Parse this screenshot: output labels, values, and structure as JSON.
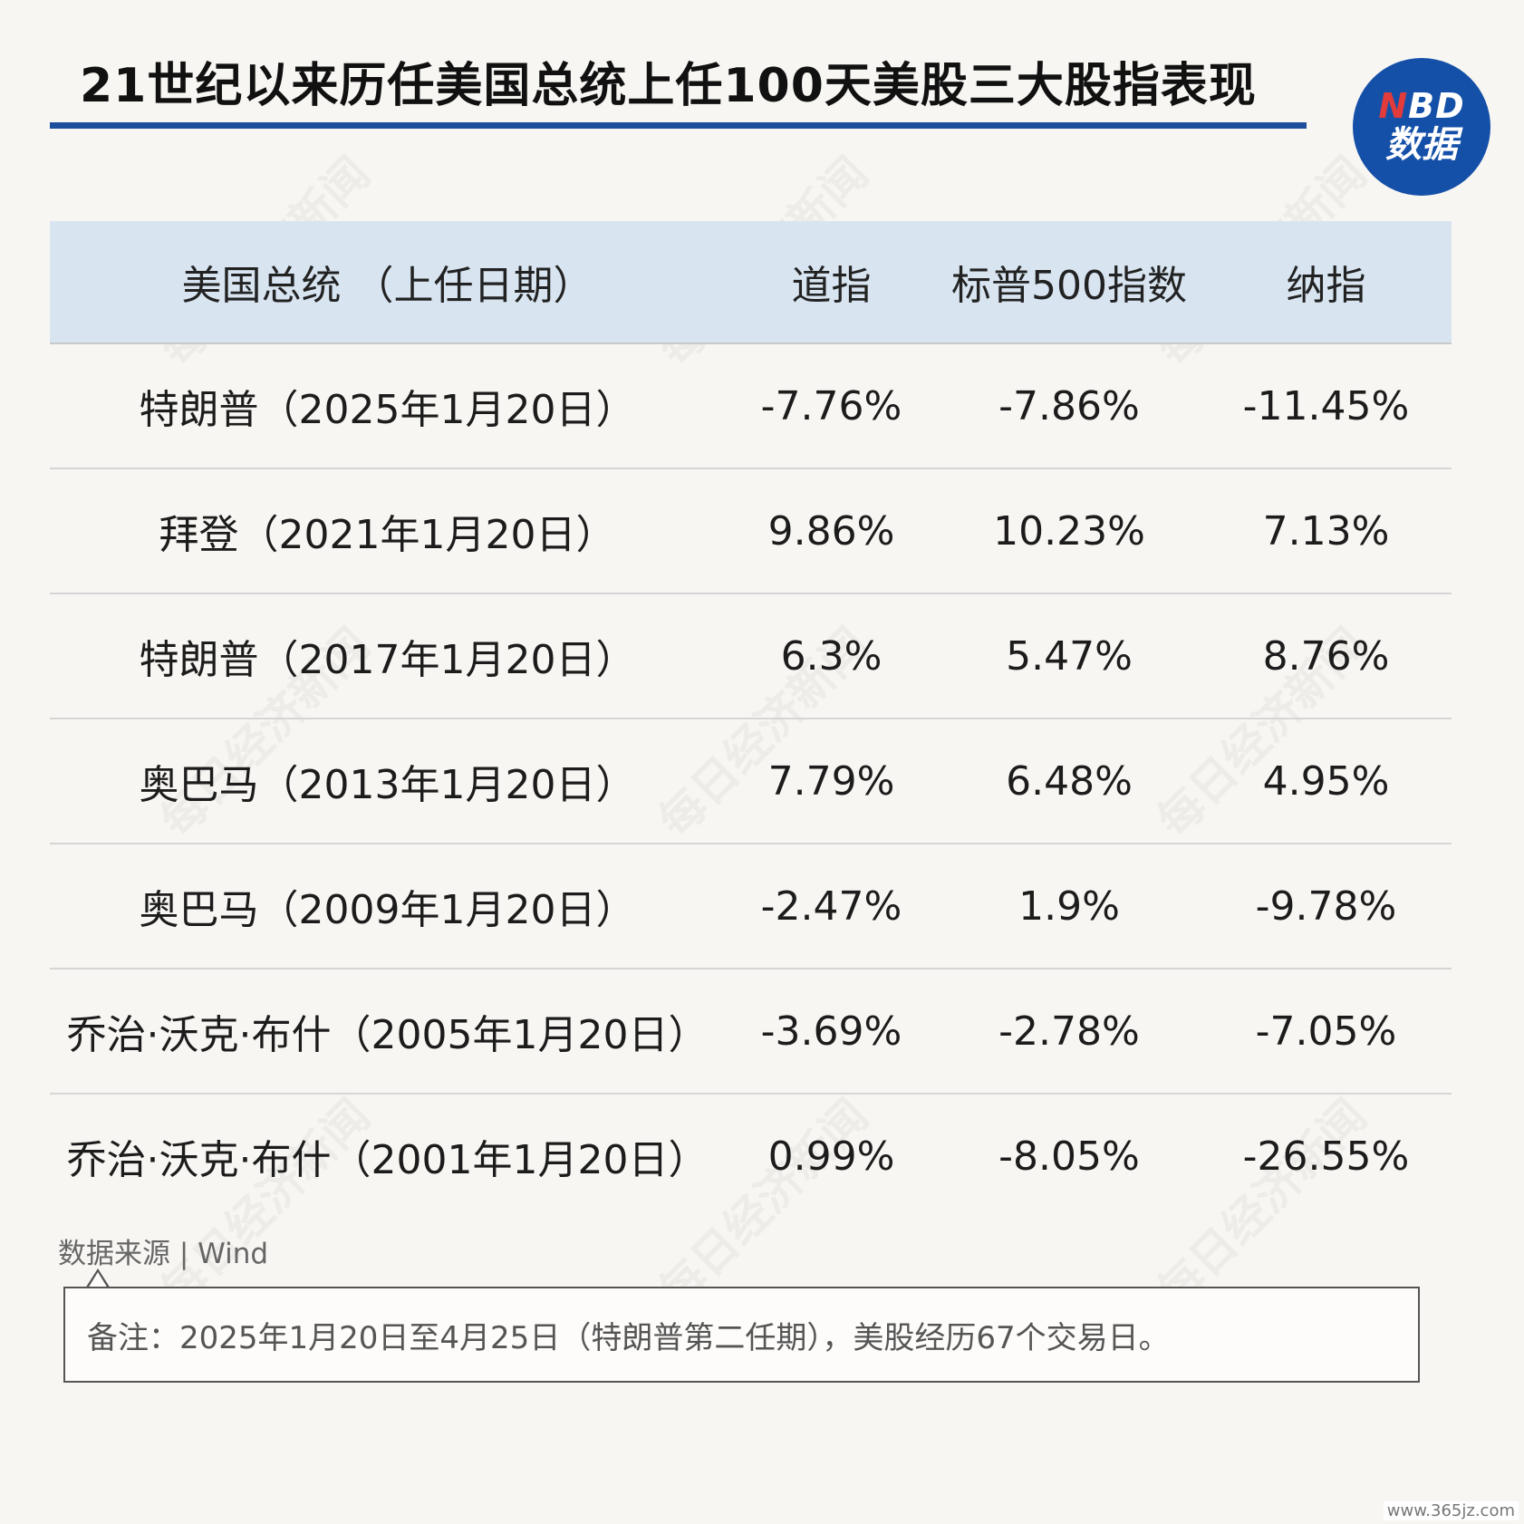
{
  "header": {
    "title": "21世纪以来历任美国总统上任100天美股三大股指表现",
    "logo_top": "NBD",
    "logo_bottom": "数据",
    "watermark": "每日经济新闻"
  },
  "colors": {
    "title_rule": "#1e4f9c",
    "header_bg": "#d8e5f1",
    "logo_bg": "#1550a8",
    "logo_accent": "#e23b3b"
  },
  "chart_data": {
    "type": "table",
    "columns": [
      "美国总统 （上任日期）",
      "道指",
      "标普500指数",
      "纳指"
    ],
    "rows": [
      [
        "特朗普（2025年1月20日）",
        "-7.76%",
        "-7.86%",
        "-11.45%"
      ],
      [
        "拜登（2021年1月20日）",
        "9.86%",
        "10.23%",
        "7.13%"
      ],
      [
        "特朗普（2017年1月20日）",
        "6.3%",
        "5.47%",
        "8.76%"
      ],
      [
        "奥巴马（2013年1月20日）",
        "7.79%",
        "6.48%",
        "4.95%"
      ],
      [
        "奥巴马（2009年1月20日）",
        "-2.47%",
        "1.9%",
        "-9.78%"
      ],
      [
        "乔治·沃克·布什（2005年1月20日）",
        "-3.69%",
        "-2.78%",
        "-7.05%"
      ],
      [
        "乔治·沃克·布什（2001年1月20日）",
        "0.99%",
        "-8.05%",
        "-26.55%"
      ]
    ]
  },
  "footer": {
    "source": "数据来源 | Wind",
    "note": "备注：2025年1月20日至4月25日（特朗普第二任期），美股经历67个交易日。",
    "site": "www.365jz.com"
  }
}
